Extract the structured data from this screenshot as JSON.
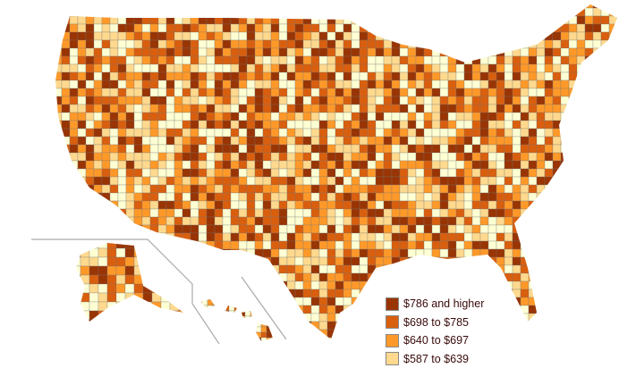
{
  "legend": {
    "items": [
      {
        "label": "$786 and higher",
        "color": "#993404"
      },
      {
        "label": "$698 to $785",
        "color": "#d95f0e"
      },
      {
        "label": "$640 to $697",
        "color": "#fe9929"
      },
      {
        "label": "$587 to $639",
        "color": "#fed98e"
      }
    ]
  },
  "colors": {
    "lowest": "#ffffd4",
    "border": "#555555",
    "inset_line": "#aaaaaa"
  }
}
